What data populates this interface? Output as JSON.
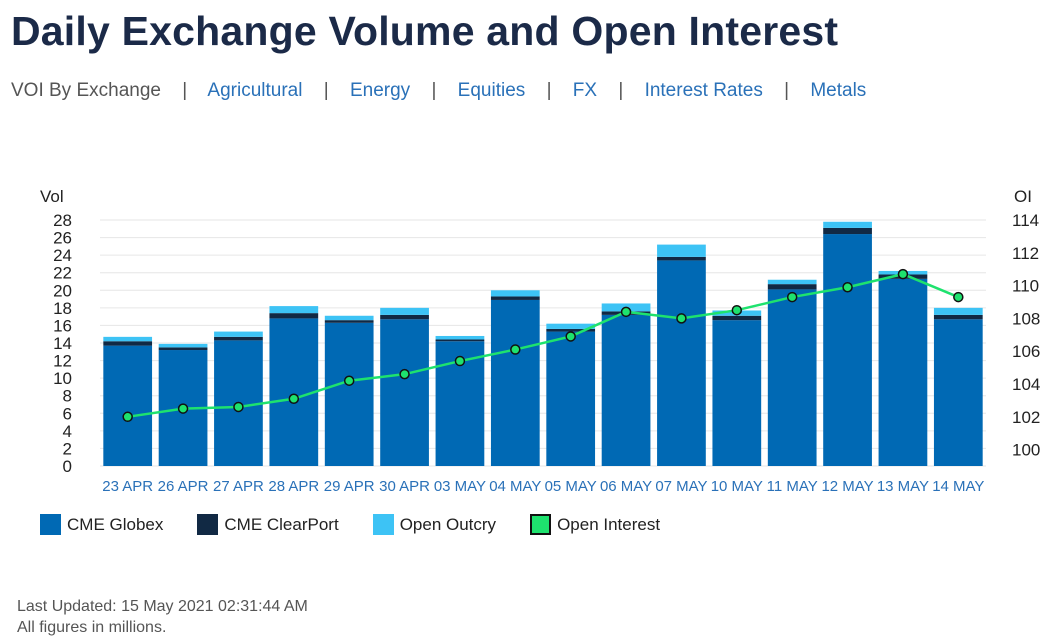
{
  "page": {
    "title": "Daily Exchange Volume and Open Interest",
    "nav": {
      "current": "VOI By Exchange",
      "separator": "|",
      "links": [
        "Agricultural",
        "Energy",
        "Equities",
        "FX",
        "Interest Rates",
        "Metals"
      ]
    },
    "footer": {
      "last_updated": "Last Updated: 15 May 2021 02:31:44 AM",
      "note": "All figures in millions."
    }
  },
  "colors": {
    "globex": "#0069b4",
    "clearport": "#112944",
    "outcry": "#3dc3f5",
    "open_interest": "#1ee26e"
  },
  "chart_data": {
    "type": "bar",
    "stacked": true,
    "categories": [
      "23 APR",
      "26 APR",
      "27 APR",
      "28 APR",
      "29 APR",
      "30 APR",
      "03 MAY",
      "04 MAY",
      "05 MAY",
      "06 MAY",
      "07 MAY",
      "10 MAY",
      "11 MAY",
      "12 MAY",
      "13 MAY",
      "14 MAY"
    ],
    "series": [
      {
        "name": "CME Globex",
        "values": [
          13.7,
          13.2,
          14.3,
          16.8,
          16.3,
          16.7,
          14.2,
          18.9,
          15.3,
          17.2,
          23.4,
          16.6,
          20.1,
          26.4,
          21.3,
          16.7
        ]
      },
      {
        "name": "CME ClearPort",
        "values": [
          0.5,
          0.3,
          0.4,
          0.6,
          0.3,
          0.5,
          0.2,
          0.4,
          0.3,
          0.4,
          0.4,
          0.5,
          0.6,
          0.7,
          0.5,
          0.5
        ]
      },
      {
        "name": "Open Outcry",
        "values": [
          0.5,
          0.4,
          0.6,
          0.8,
          0.5,
          0.8,
          0.4,
          0.7,
          0.6,
          0.9,
          1.4,
          0.6,
          0.5,
          0.7,
          0.4,
          0.8
        ]
      }
    ],
    "line_series": {
      "name": "Open Interest",
      "axis": "right",
      "values": [
        102.0,
        102.5,
        102.6,
        103.1,
        104.2,
        104.6,
        105.4,
        106.1,
        106.9,
        108.4,
        108.0,
        108.5,
        109.3,
        109.9,
        110.7,
        109.3
      ]
    },
    "ylabel": "Vol",
    "y2label": "OI",
    "ylim": [
      0,
      28
    ],
    "yticks": [
      0,
      2,
      4,
      6,
      8,
      10,
      12,
      14,
      16,
      18,
      20,
      22,
      24,
      26,
      28
    ],
    "y2lim": [
      99,
      114
    ],
    "y2ticks": [
      100,
      102,
      104,
      106,
      108,
      110,
      112,
      114
    ],
    "grid": true,
    "legend_position": "bottom-left"
  }
}
